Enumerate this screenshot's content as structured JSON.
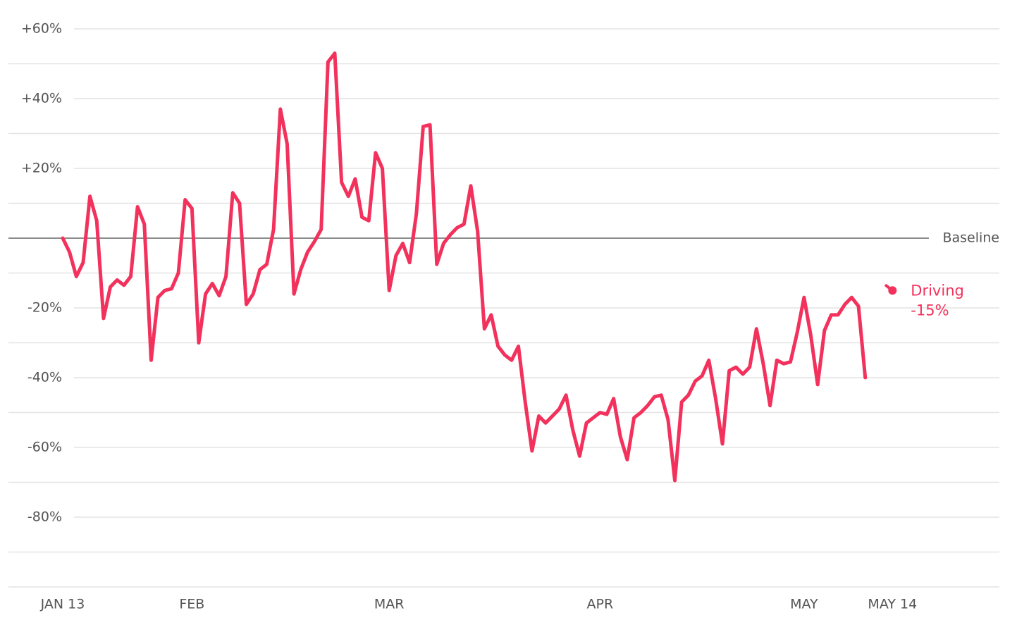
{
  "chart_data": {
    "type": "line",
    "categories": [
      "JAN 13",
      null,
      null,
      null,
      null,
      null,
      null,
      null,
      null,
      null,
      null,
      null,
      null,
      null,
      null,
      null,
      null,
      null,
      null,
      "FEB",
      null,
      null,
      null,
      null,
      null,
      null,
      null,
      null,
      null,
      null,
      null,
      null,
      null,
      null,
      null,
      null,
      null,
      null,
      null,
      null,
      null,
      null,
      null,
      null,
      null,
      null,
      null,
      null,
      "MAR",
      null,
      null,
      null,
      null,
      null,
      null,
      null,
      null,
      null,
      null,
      null,
      null,
      null,
      null,
      null,
      null,
      null,
      null,
      null,
      null,
      null,
      null,
      null,
      null,
      null,
      null,
      null,
      null,
      null,
      null,
      "APR",
      null,
      null,
      null,
      null,
      null,
      null,
      null,
      null,
      null,
      null,
      null,
      null,
      null,
      null,
      null,
      null,
      null,
      null,
      null,
      null,
      null,
      null,
      null,
      null,
      null,
      null,
      null,
      null,
      null,
      "MAY",
      null,
      null,
      null,
      null,
      null,
      null,
      null,
      null,
      null,
      null,
      null,
      null,
      "MAY 14"
    ],
    "series": [
      {
        "name": "Driving",
        "color": "#f2325c",
        "values": [
          0,
          -4,
          -11,
          -7,
          12,
          5,
          -23,
          -14,
          -12,
          -13.5,
          -11,
          9,
          4,
          -35,
          -17,
          -15,
          -14.5,
          -10,
          11,
          8.5,
          -30,
          -16,
          -13,
          -16.5,
          -11,
          13,
          10,
          -19,
          -16,
          -9,
          -7.5,
          2.5,
          37,
          27,
          -16,
          -9,
          -4,
          -1,
          2.5,
          50.5,
          53,
          16,
          12,
          17,
          6,
          5,
          24.5,
          20,
          -15,
          -5,
          -1.5,
          -7,
          7,
          32,
          32.5,
          -7.5,
          -1.5,
          1,
          3,
          4,
          15,
          2,
          -26,
          -22,
          -31,
          -33.5,
          -35,
          -31,
          -47,
          -61,
          -51,
          -53,
          -51,
          -49,
          -45,
          -55,
          -62.5,
          -53,
          -51.5,
          -50,
          -50.5,
          -46,
          -57,
          -63.5,
          -51.5,
          -50,
          -48,
          -45.5,
          -45,
          -52,
          -69.5,
          -47,
          -45,
          -41,
          -39.5,
          -35,
          -46,
          -59,
          -38,
          -37,
          -39,
          -37,
          -26,
          -36,
          -48,
          -35,
          -36,
          -35.5,
          -27,
          -17,
          -28,
          -42,
          -26.5,
          -22,
          -22,
          -19,
          -17,
          -19.5,
          -40,
          null,
          null,
          null,
          null
        ],
        "current": {
          "value": -15,
          "label": "-15%"
        }
      }
    ],
    "ylim": [
      -100,
      60
    ],
    "yticks": [
      {
        "value": 60,
        "label": "+60%"
      },
      {
        "value": 40,
        "label": "+40%"
      },
      {
        "value": 20,
        "label": "+20%"
      },
      {
        "value": -20,
        "label": "-20%"
      },
      {
        "value": -40,
        "label": "-40%"
      },
      {
        "value": -60,
        "label": "-60%"
      },
      {
        "value": -80,
        "label": "-80%"
      }
    ],
    "minor_yticks": [
      50,
      30,
      10,
      -10,
      -30,
      -50,
      -70,
      -90,
      -100
    ],
    "baseline": {
      "value": 0,
      "label": "Baseline"
    },
    "grid": true
  }
}
